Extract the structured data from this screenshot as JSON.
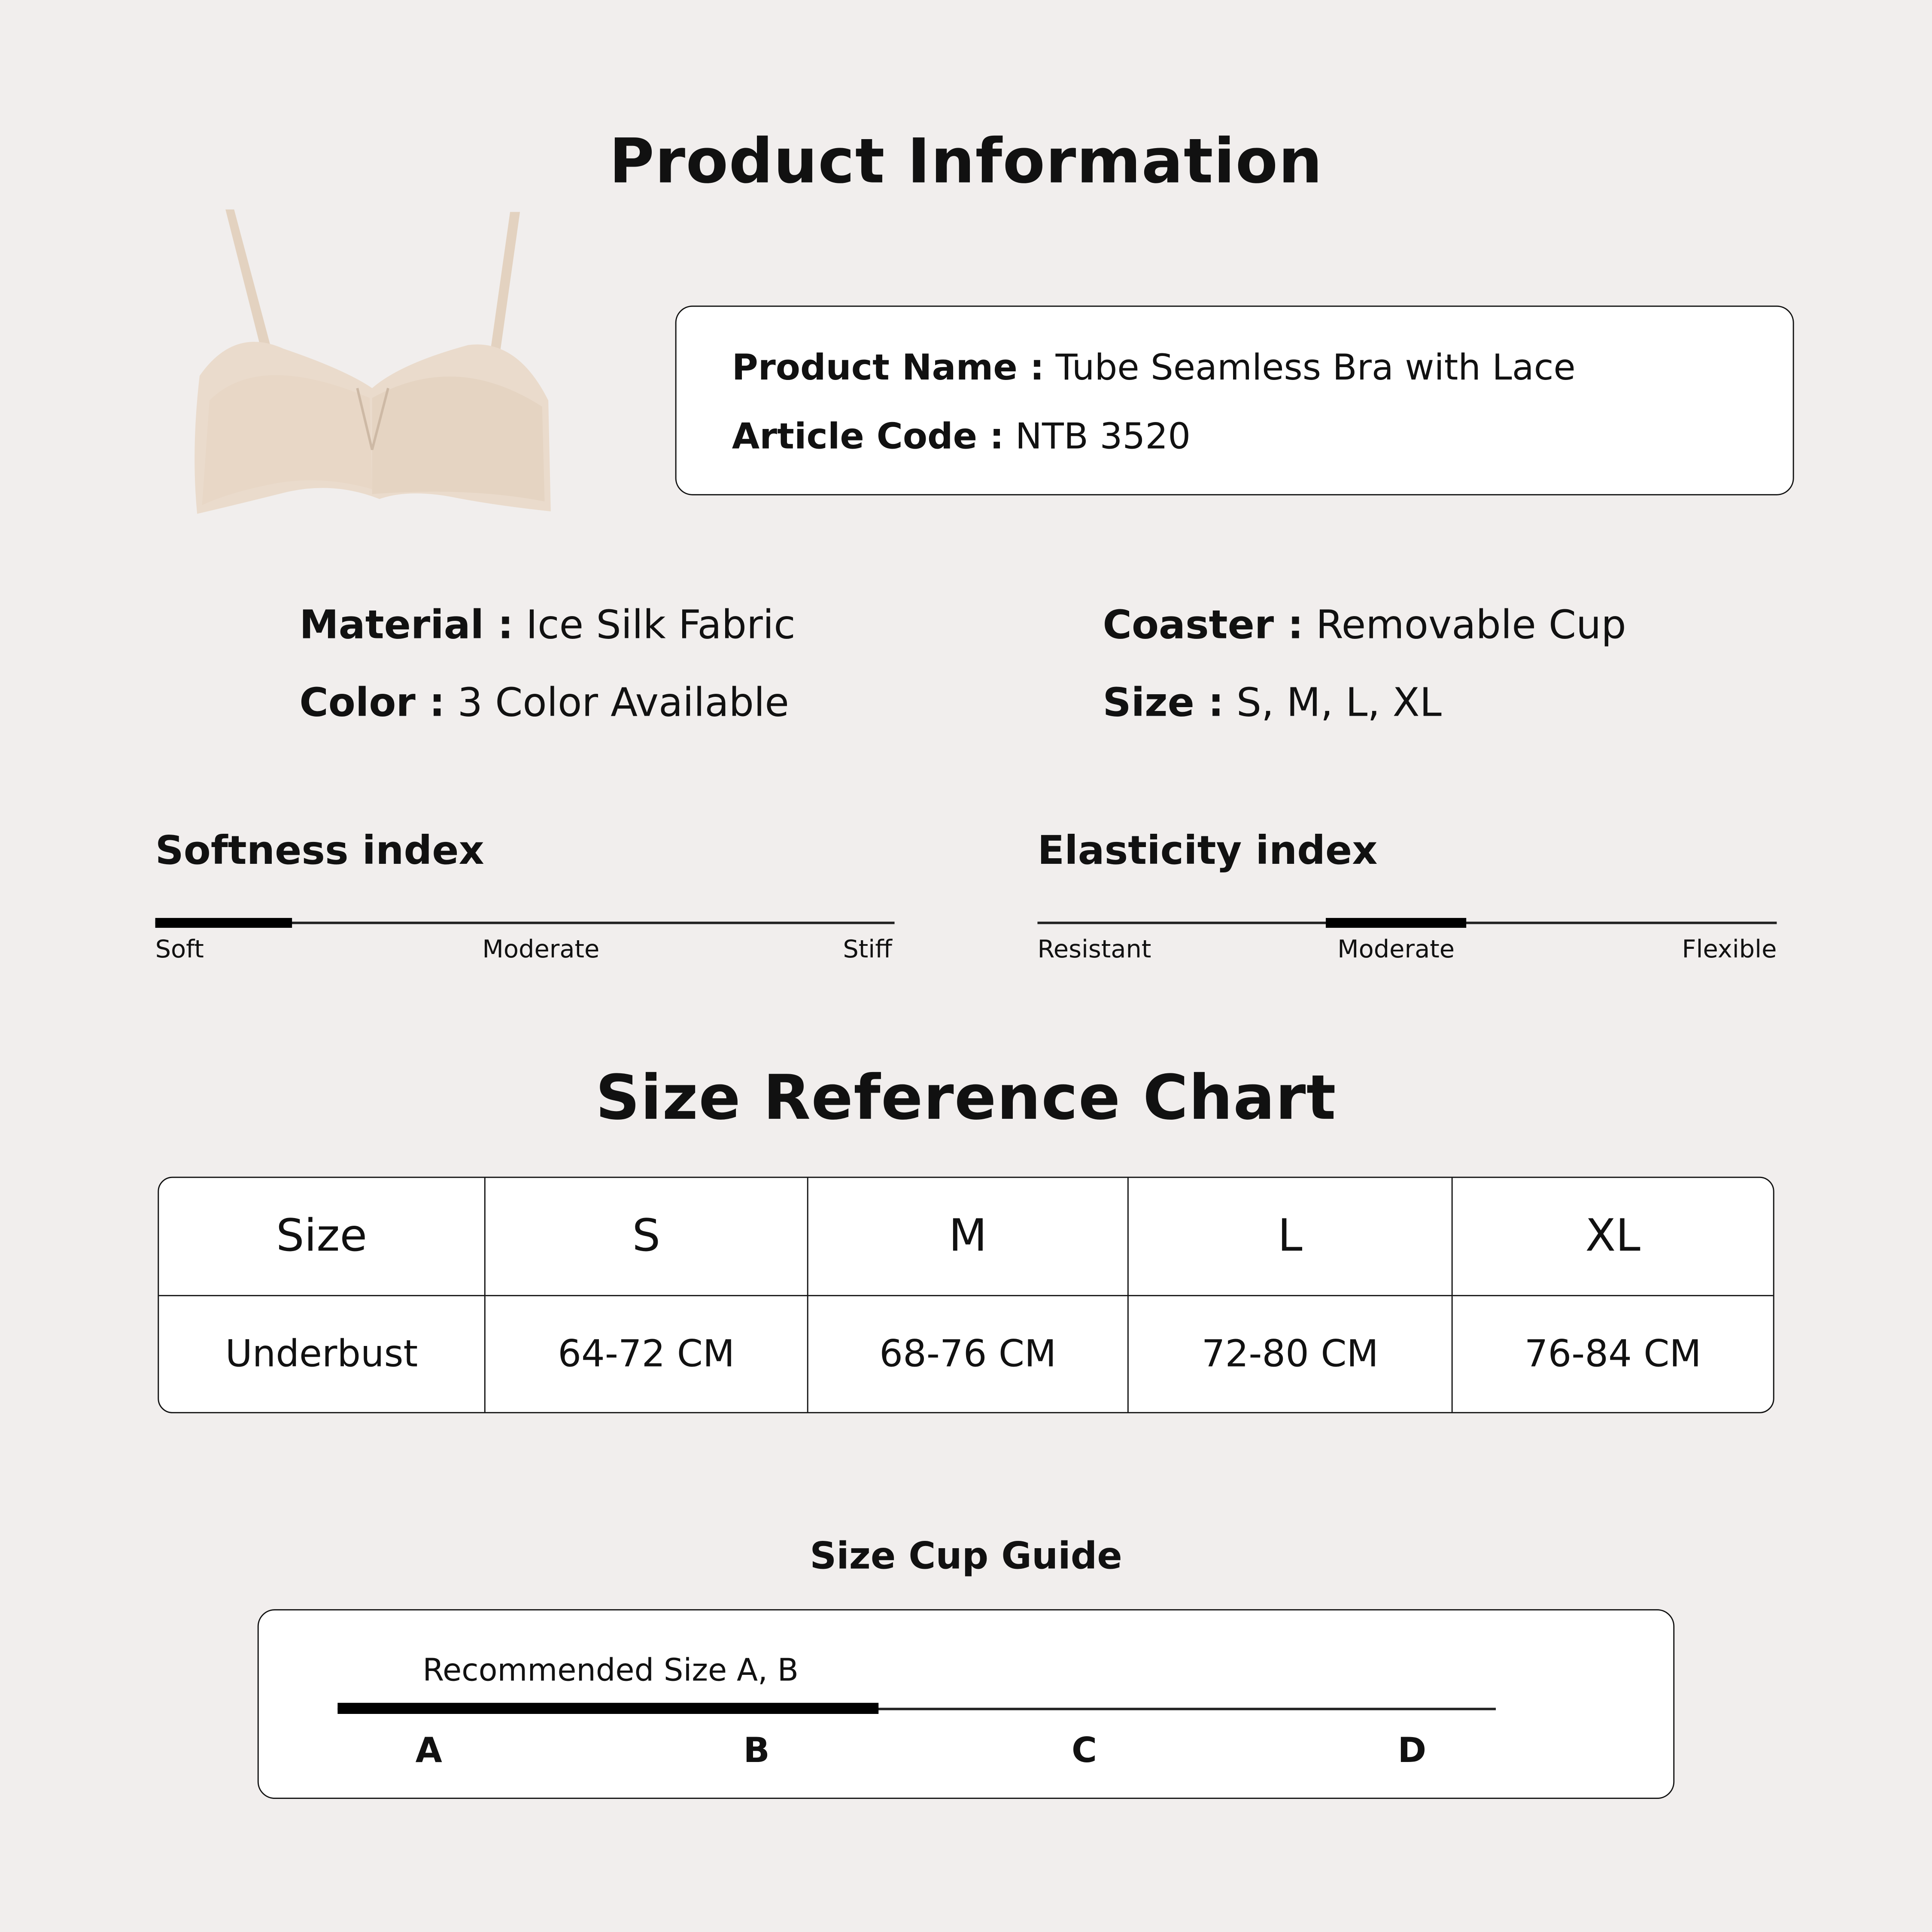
{
  "title": "Product Information",
  "product_image": {
    "icon": "bra-image",
    "color": "#e6d6c6"
  },
  "info_box": {
    "product_name_label": "Product Name :",
    "product_name_value": "Tube Seamless Bra with Lace",
    "article_code_label": "Article Code :",
    "article_code_value": "NTB 3520"
  },
  "attributes": {
    "material_label": "Material :",
    "material_value": "Ice Silk Fabric",
    "color_label": "Color :",
    "color_value": "3 Color Available",
    "coaster_label": "Coaster :",
    "coaster_value": "Removable Cup",
    "size_label": "Size :",
    "size_value": "S, M, L, XL"
  },
  "softness": {
    "title": "Softness index",
    "labels": [
      "Soft",
      "Moderate",
      "Stiff"
    ],
    "level_range": [
      0,
      0.185
    ]
  },
  "elasticity": {
    "title": "Elasticity index",
    "labels": [
      "Resistant",
      "Moderate",
      "Flexible"
    ],
    "level_range": [
      0.39,
      0.58
    ]
  },
  "size_chart": {
    "title": "Size Reference Chart",
    "header": [
      "Size",
      "S",
      "M",
      "L",
      "XL"
    ],
    "rows": [
      [
        "Underbust",
        "64-72 CM",
        "68-76 CM",
        "72-80 CM",
        "76-84 CM"
      ]
    ]
  },
  "cup_guide": {
    "title": "Size Cup Guide",
    "recommendation": "Recommended Size A, B",
    "cups": [
      "A",
      "B",
      "C",
      "D"
    ],
    "level_range": [
      0,
      0.467
    ]
  },
  "colors": {
    "background": "#f1eeed",
    "text": "#111111",
    "box": "#ffffff"
  }
}
